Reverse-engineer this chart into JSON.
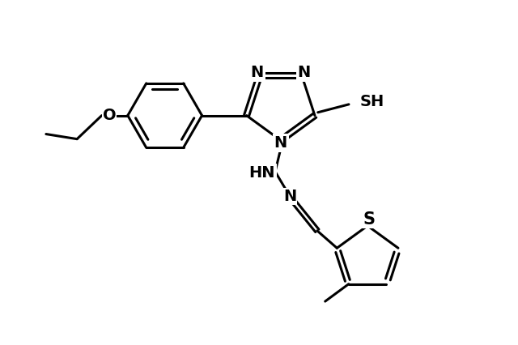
{
  "background": "#ffffff",
  "line_color": "#000000",
  "line_width": 2.2,
  "font_size": 14,
  "figsize": [
    6.4,
    4.26
  ],
  "dpi": 100,
  "xlim": [
    0.5,
    8.5
  ],
  "ylim": [
    1.0,
    6.5
  ]
}
